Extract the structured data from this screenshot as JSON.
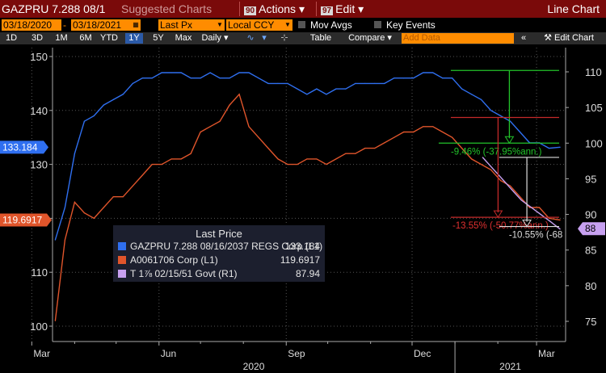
{
  "toolbar": {
    "title": "GAZPRU 7.288 08/1",
    "ghost": "Suggested Charts",
    "actions_key": "90",
    "actions_label": "Actions",
    "edit_key": "97",
    "edit_label": "Edit",
    "chart_label": "Line Chart"
  },
  "controls": {
    "start_date": "03/18/2020",
    "end_date": "03/18/2021",
    "field": "Last Px",
    "currency": "Local CCY",
    "mov_avgs": "Mov Avgs",
    "key_events": "Key Events"
  },
  "periods": [
    "1D",
    "3D",
    "1M",
    "6M",
    "YTD",
    "1Y",
    "5Y",
    "Max"
  ],
  "selected_period": "1Y",
  "toolbar2": {
    "frequency": "Daily",
    "table": "Table",
    "compare": "Compare",
    "add_data": "Add Data",
    "edit_chart": "Edit Chart"
  },
  "legend": {
    "title": "Last Price",
    "rows": [
      {
        "name": "GAZPRU 7.288 08/16/2037 REGS Corp  (L1)",
        "value": "133.184",
        "color": "#2f6ff0"
      },
      {
        "name": "A0061706 Corp  (L1)",
        "value": "119.6917",
        "color": "#e0552b"
      },
      {
        "name": "T 1⅞ 02/15/51 Govt  (R1)",
        "value": "87.94",
        "color": "#c7a0f0"
      }
    ]
  },
  "value_tags": {
    "blue": "133.184",
    "orange": "119.6917",
    "purple": "88"
  },
  "annotations": {
    "green": "-9.46% (-37.95%ann.)",
    "red": "-13.55% (-50.77%ann.)",
    "white": "-10.55% (-68"
  },
  "chart_data": {
    "type": "line",
    "x_months": [
      "Mar",
      "Jun",
      "Sep",
      "Dec",
      "Mar"
    ],
    "x_years": [
      "2020",
      "2021"
    ],
    "left_axis": {
      "ticks": [
        100,
        110,
        120,
        130,
        140,
        150
      ],
      "ylim": [
        97,
        152
      ]
    },
    "right_axis": {
      "ticks": [
        75,
        80,
        85,
        90,
        95,
        100,
        105,
        110
      ],
      "ylim": [
        72.5,
        113
      ]
    },
    "series": [
      {
        "name": "GAZPRU 7.288 08/16/2037 REGS Corp (L1)",
        "axis": "left",
        "color": "#2f6ff0",
        "x": [
          "2020-03-18",
          "2020-03-25",
          "2020-04-01",
          "2020-04-08",
          "2020-04-15",
          "2020-04-22",
          "2020-04-29",
          "2020-05-06",
          "2020-05-13",
          "2020-05-20",
          "2020-05-27",
          "2020-06-03",
          "2020-06-10",
          "2020-06-17",
          "2020-06-24",
          "2020-07-01",
          "2020-07-08",
          "2020-07-15",
          "2020-07-22",
          "2020-07-29",
          "2020-08-05",
          "2020-08-12",
          "2020-08-19",
          "2020-08-26",
          "2020-09-02",
          "2020-09-09",
          "2020-09-16",
          "2020-09-23",
          "2020-09-30",
          "2020-10-07",
          "2020-10-14",
          "2020-10-21",
          "2020-10-28",
          "2020-11-04",
          "2020-11-11",
          "2020-11-18",
          "2020-11-25",
          "2020-12-02",
          "2020-12-09",
          "2020-12-16",
          "2020-12-23",
          "2020-12-30",
          "2021-01-06",
          "2021-01-13",
          "2021-01-20",
          "2021-01-27",
          "2021-02-03",
          "2021-02-10",
          "2021-02-17",
          "2021-02-24",
          "2021-03-03",
          "2021-03-10",
          "2021-03-18"
        ],
        "values": [
          116,
          122,
          132,
          138,
          139,
          141,
          142,
          143,
          145,
          146,
          146,
          147,
          147,
          147,
          146,
          146,
          147,
          146,
          146,
          147,
          147,
          146,
          145,
          145,
          145,
          144,
          143,
          144,
          143,
          144,
          144,
          145,
          145,
          145,
          145,
          146,
          146,
          146,
          147,
          147,
          146,
          146,
          144,
          143,
          142,
          140,
          139,
          138,
          136,
          134,
          134,
          133,
          133.184
        ]
      },
      {
        "name": "A0061706 Corp (L1)",
        "axis": "left",
        "color": "#e0552b",
        "x": [
          "2020-03-18",
          "2020-03-25",
          "2020-04-01",
          "2020-04-08",
          "2020-04-15",
          "2020-04-22",
          "2020-04-29",
          "2020-05-06",
          "2020-05-13",
          "2020-05-20",
          "2020-05-27",
          "2020-06-03",
          "2020-06-10",
          "2020-06-17",
          "2020-06-24",
          "2020-07-01",
          "2020-07-08",
          "2020-07-15",
          "2020-07-22",
          "2020-07-29",
          "2020-08-05",
          "2020-08-12",
          "2020-08-19",
          "2020-08-26",
          "2020-09-02",
          "2020-09-09",
          "2020-09-16",
          "2020-09-23",
          "2020-09-30",
          "2020-10-07",
          "2020-10-14",
          "2020-10-21",
          "2020-10-28",
          "2020-11-04",
          "2020-11-11",
          "2020-11-18",
          "2020-11-25",
          "2020-12-02",
          "2020-12-09",
          "2020-12-16",
          "2020-12-23",
          "2020-12-30",
          "2021-01-06",
          "2021-01-13",
          "2021-01-20",
          "2021-01-27",
          "2021-02-03",
          "2021-02-10",
          "2021-02-17",
          "2021-02-24",
          "2021-03-03",
          "2021-03-10",
          "2021-03-18"
        ],
        "values": [
          101,
          116,
          123,
          121,
          120,
          122,
          124,
          124,
          126,
          128,
          130,
          130,
          131,
          131,
          132,
          136,
          137,
          138,
          141,
          143,
          137,
          135,
          133,
          131,
          130,
          130,
          131,
          131,
          130,
          131,
          132,
          132,
          133,
          133,
          134,
          135,
          136,
          136,
          137,
          137,
          136,
          135,
          133,
          131,
          130,
          129,
          127,
          126,
          124,
          122,
          122,
          120,
          119.6917
        ]
      },
      {
        "name": "T 1 7/8 02/15/51 Govt (R1)",
        "axis": "right",
        "color": "#c7a0f0",
        "x": [
          "2021-01-21",
          "2021-01-28",
          "2021-02-04",
          "2021-02-11",
          "2021-02-18",
          "2021-02-25",
          "2021-03-04",
          "2021-03-11",
          "2021-03-18"
        ],
        "values": [
          98,
          96.5,
          95,
          93.5,
          92,
          91,
          90,
          89,
          87.94
        ]
      }
    ]
  }
}
